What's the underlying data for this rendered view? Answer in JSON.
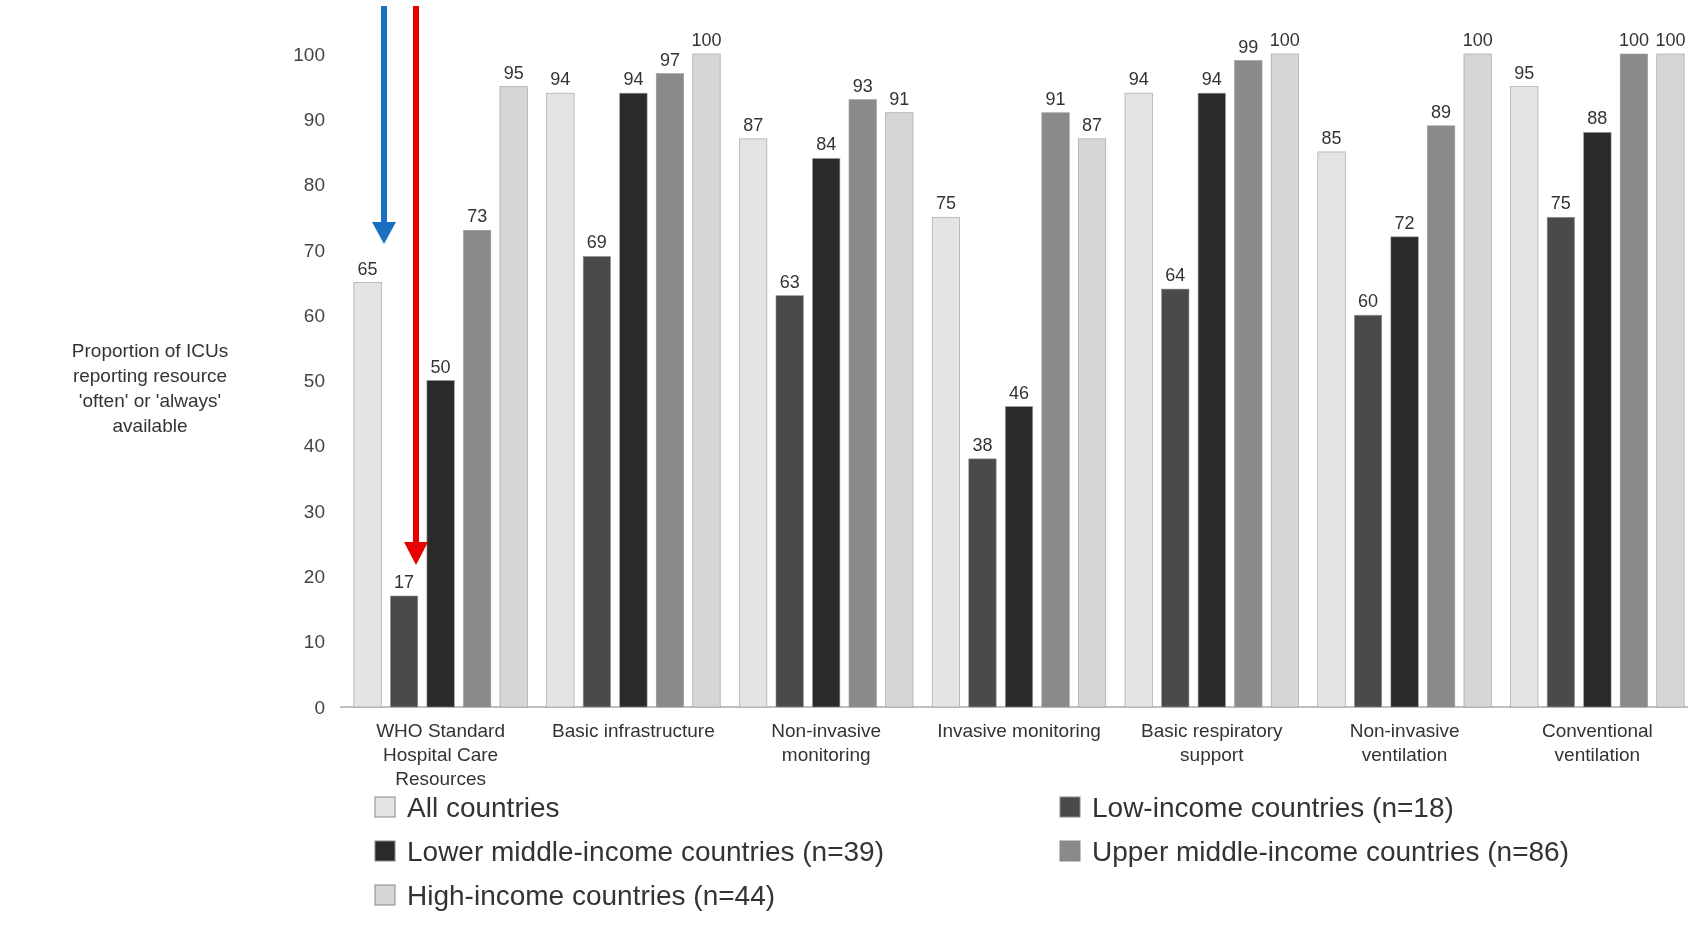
{
  "chart_data": {
    "type": "bar",
    "ylabel": "Proportion of ICUs reporting resource 'often' or 'always' available",
    "categories": [
      "WHO Standard Hospital Care Resources",
      "Basic infrastructure",
      "Non-invasive monitoring",
      "Invasive monitoring",
      "Basic respiratory support",
      "Non-invasive ventilation",
      "Conventional ventilation"
    ],
    "series": [
      {
        "name": "All countries",
        "color": "#e4e4e4",
        "values": [
          65,
          94,
          87,
          75,
          94,
          85,
          95
        ]
      },
      {
        "name": "Low-income countries (n=18)",
        "color": "#4a4a4a",
        "values": [
          17,
          69,
          63,
          38,
          64,
          60,
          75
        ]
      },
      {
        "name": "Lower middle-income countries (n=39)",
        "color": "#2a2a2a",
        "values": [
          50,
          94,
          84,
          46,
          94,
          72,
          88
        ]
      },
      {
        "name": "Upper middle-income countries (n=86)",
        "color": "#8a8a8a",
        "values": [
          73,
          97,
          93,
          91,
          99,
          89,
          100
        ]
      },
      {
        "name": "High-income countries (n=44)",
        "color": "#d6d6d6",
        "values": [
          95,
          100,
          91,
          87,
          100,
          100,
          100
        ]
      }
    ],
    "ylim": [
      0,
      100
    ],
    "yticks": [
      0,
      10,
      20,
      30,
      40,
      50,
      60,
      70,
      80,
      90,
      100
    ],
    "grid": false,
    "legend": "bottom",
    "data_labels": true
  }
}
